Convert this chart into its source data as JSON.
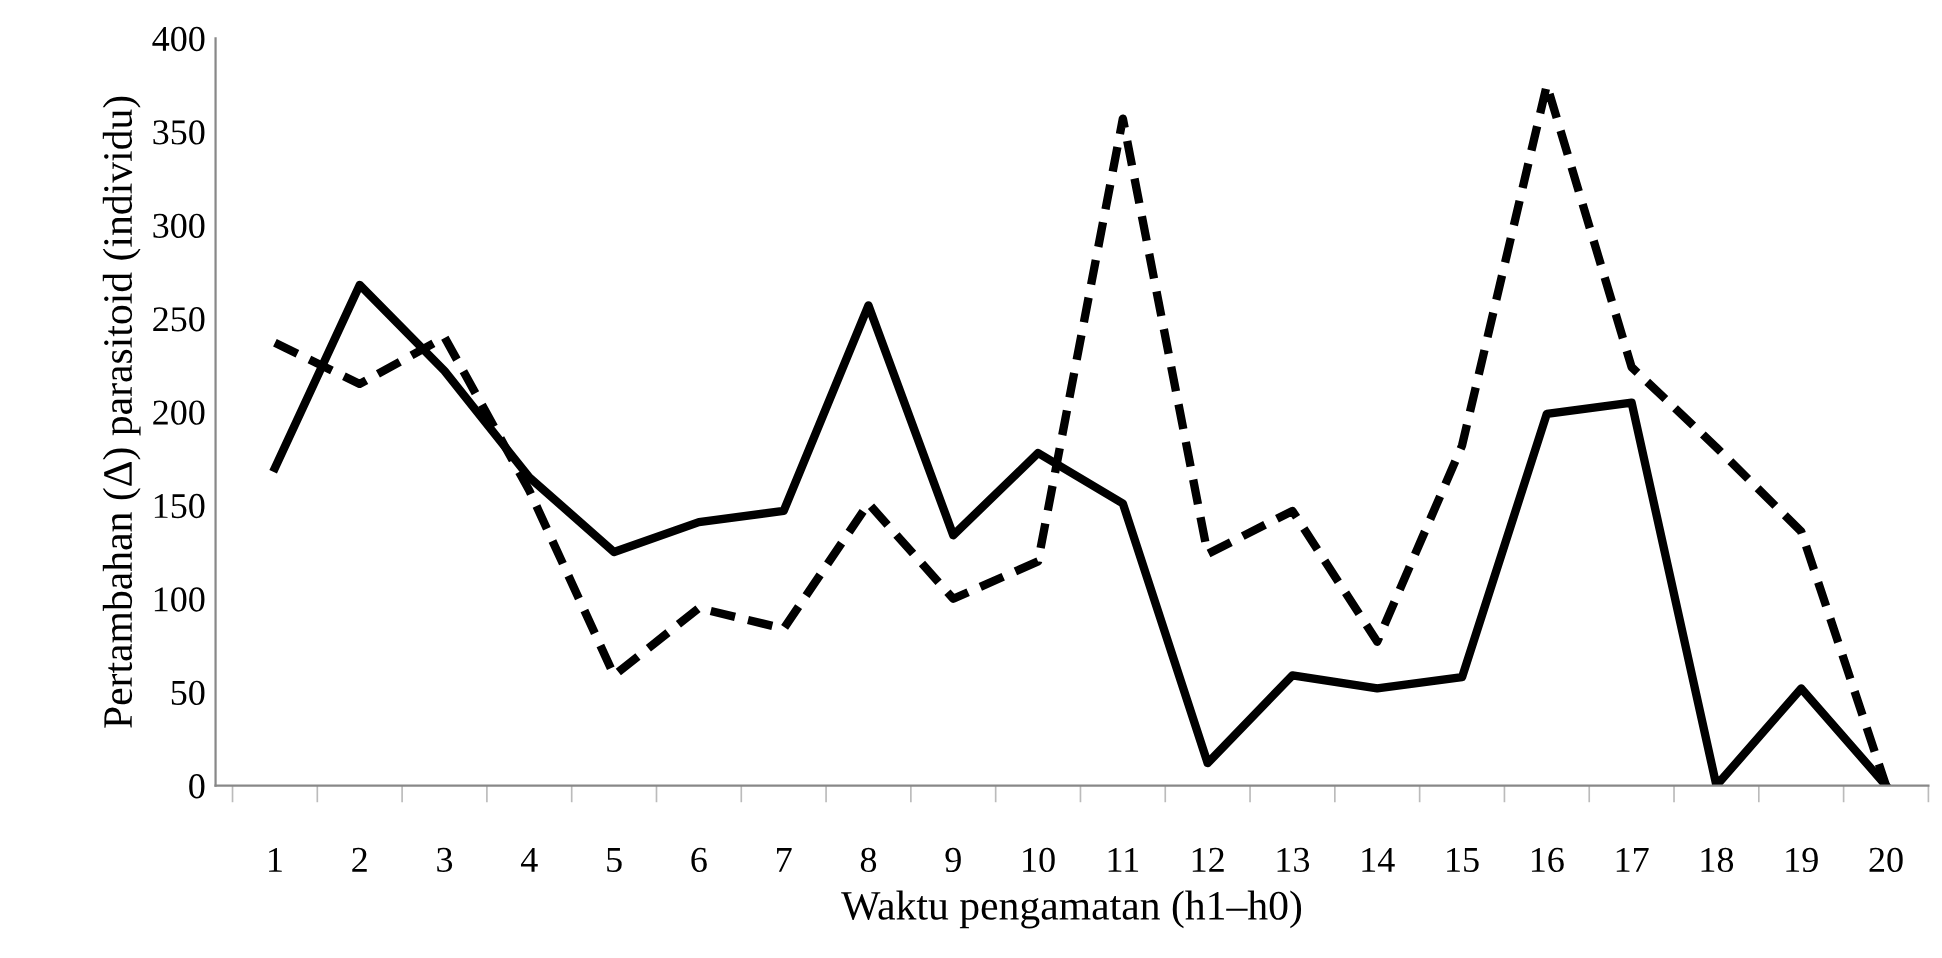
{
  "chart_data": {
    "type": "line",
    "xlabel": "Waktu pengamatan (h1–h0)",
    "ylabel": "Pertambahan (Δ) parasitoid (individu)",
    "categories": [
      "1",
      "2",
      "3",
      "4",
      "5",
      "6",
      "7",
      "8",
      "9",
      "10",
      "11",
      "12",
      "13",
      "14",
      "15",
      "16",
      "17",
      "18",
      "19",
      "20"
    ],
    "ylim": [
      0,
      400
    ],
    "yticks": [
      0,
      50,
      100,
      150,
      200,
      250,
      300,
      350,
      400
    ],
    "grid": false,
    "legend": false,
    "marker": "none",
    "series": [
      {
        "color": "#000000",
        "line_style": "solid",
        "values": [
          170,
          268,
          222,
          165,
          125,
          141,
          147,
          257,
          134,
          178,
          151,
          12,
          59,
          52,
          58,
          199,
          205,
          0,
          52,
          0
        ]
      },
      {
        "color": "#000000",
        "line_style": "dashed",
        "values": [
          237,
          215,
          240,
          158,
          59,
          95,
          84,
          151,
          100,
          120,
          357,
          124,
          147,
          77,
          182,
          375,
          224,
          181,
          136,
          0
        ]
      }
    ]
  }
}
